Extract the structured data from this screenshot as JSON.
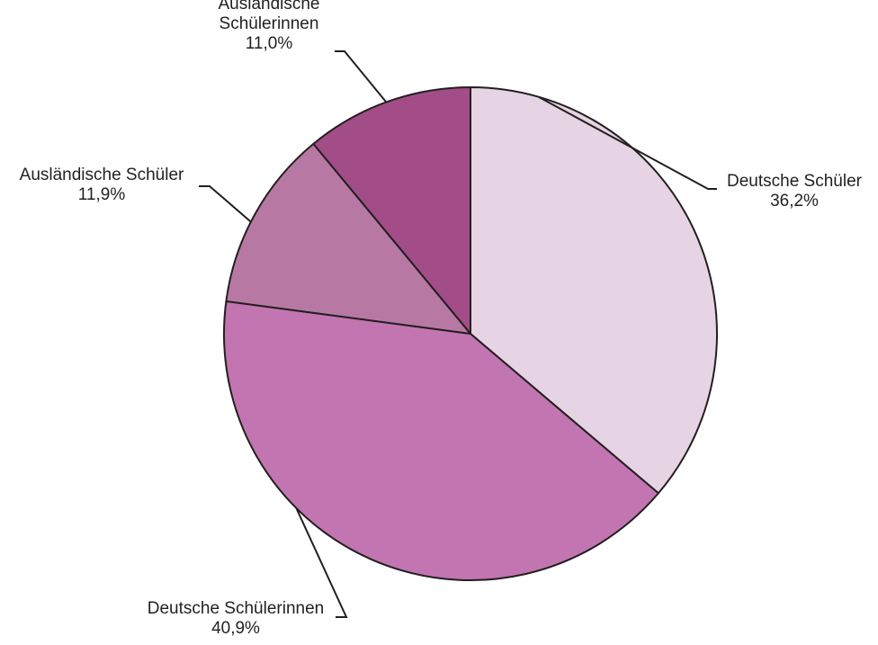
{
  "chart_data": {
    "type": "pie",
    "title": "",
    "start_angle_deg": 0,
    "direction": "clockwise",
    "slices": [
      {
        "label_lines": [
          "Deutsche Schüler"
        ],
        "value": 36.2,
        "value_label": "36,2%",
        "color": "#e6d3e3"
      },
      {
        "label_lines": [
          "Deutsche Schülerinnen"
        ],
        "value": 40.9,
        "value_label": "40,9%",
        "color": "#c275b0"
      },
      {
        "label_lines": [
          "Ausländische Schüler"
        ],
        "value": 11.9,
        "value_label": "11,9%",
        "color": "#b779a4"
      },
      {
        "label_lines": [
          "Ausländische",
          "Schülerinnen"
        ],
        "value": 11.0,
        "value_label": "11,0%",
        "color": "#a24d88"
      }
    ]
  }
}
